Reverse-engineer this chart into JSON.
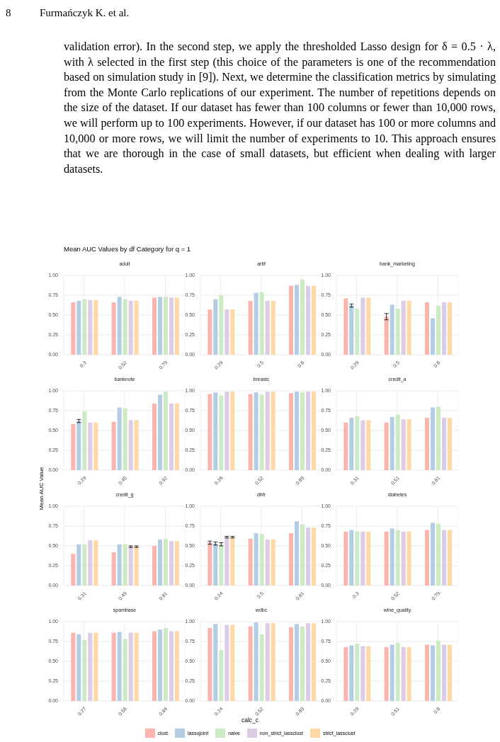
{
  "chart_data": [
    {
      "type": "other",
      "annotations": [
        "8",
        "Furmańczyk K. et al.",
        "validation error). In the second step, we apply the thresholded Lasso design for δ = 0.5 · λ, with λ selected in the first step (this choice of the parameters is one of the recommendation based on simulation study in [9]). Next, we determine the classification metrics by simulating from the Monte Carlo replications of our experiment. The number of repetitions depends on the size of the dataset. If our dataset has fewer than 100 columns or fewer than 10,000 rows, we will perform up to 100 experiments. However, if our dataset has 100 or more columns and 10,000 or more rows, we will limit the number of experiments to 10. This approach ensures that we are thorough in the case of small datasets, but efficient when dealing with larger datasets."
      ]
    },
    {
      "type": "bar",
      "title": "Mean AUC Values by df Category for q = 1",
      "subtitle": "adult",
      "categories": [
        "0.3",
        "0.52",
        "0.79"
      ],
      "ylim": [
        0,
        1
      ],
      "yticks": [
        {
          "value": 0,
          "label": "0.00"
        },
        {
          "value": 0.25,
          "label": "0.25"
        },
        {
          "value": 0.5,
          "label": "0.50"
        },
        {
          "value": 0.75,
          "label": "0.75"
        },
        {
          "value": 1,
          "label": "1.00"
        }
      ],
      "grid": true,
      "series": [
        {
          "color": "#fbb4ae",
          "values": [
            0.66,
            0.66,
            0.72
          ]
        },
        {
          "color": "#b3cde3",
          "values": [
            0.68,
            0.73,
            0.73
          ]
        },
        {
          "color": "#ccebc5",
          "values": [
            0.7,
            0.7,
            0.73
          ]
        },
        {
          "color": "#decbe4",
          "values": [
            0.69,
            0.68,
            0.72
          ]
        },
        {
          "color": "#fed9a6",
          "values": [
            0.69,
            0.68,
            0.72
          ]
        }
      ]
    },
    {
      "type": "bar",
      "subtitle": "artif",
      "categories": [
        "0.29",
        "0.5",
        "0.8"
      ],
      "ylim": [
        0,
        1
      ],
      "yticks": [
        {
          "value": 0,
          "label": "0.00"
        },
        {
          "value": 0.25,
          "label": "0.25"
        },
        {
          "value": 0.5,
          "label": "0.50"
        },
        {
          "value": 0.75,
          "label": "0.75"
        },
        {
          "value": 1,
          "label": "1.00"
        }
      ],
      "grid": true,
      "series": [
        {
          "color": "#fbb4ae",
          "values": [
            0.57,
            0.68,
            0.87
          ]
        },
        {
          "color": "#b3cde3",
          "values": [
            0.7,
            0.78,
            0.88
          ]
        },
        {
          "color": "#ccebc5",
          "values": [
            0.75,
            0.79,
            0.95
          ]
        },
        {
          "color": "#decbe4",
          "values": [
            0.57,
            0.68,
            0.87
          ]
        },
        {
          "color": "#fed9a6",
          "values": [
            0.57,
            0.68,
            0.87
          ]
        }
      ]
    },
    {
      "type": "bar",
      "subtitle": "bank_marketing",
      "categories": [
        "0.29",
        "0.5",
        "0.8"
      ],
      "ylim": [
        0,
        1
      ],
      "yticks": [
        {
          "value": 0,
          "label": "0.00"
        },
        {
          "value": 0.25,
          "label": "0.25"
        },
        {
          "value": 0.5,
          "label": "0.50"
        },
        {
          "value": 0.75,
          "label": "0.75"
        },
        {
          "value": 1,
          "label": "1.00"
        }
      ],
      "grid": true,
      "series": [
        {
          "color": "#fbb4ae",
          "values": [
            0.71,
            0.48,
            0.66
          ],
          "errors": [
            null,
            0.04,
            null
          ]
        },
        {
          "color": "#b3cde3",
          "values": [
            0.62,
            0.63,
            0.46
          ],
          "errors": [
            0.02,
            null,
            null
          ]
        },
        {
          "color": "#ccebc5",
          "values": [
            0.58,
            0.58,
            0.62
          ]
        },
        {
          "color": "#decbe4",
          "values": [
            0.72,
            0.68,
            0.66
          ]
        },
        {
          "color": "#fed9a6",
          "values": [
            0.72,
            0.68,
            0.66
          ]
        }
      ]
    },
    {
      "type": "bar",
      "subtitle": "banknote",
      "categories": [
        "0.29",
        "0.45",
        "0.92"
      ],
      "ylim": [
        0,
        1
      ],
      "yticks": [
        {
          "value": 0,
          "label": "0.00"
        },
        {
          "value": 0.25,
          "label": "0.25"
        },
        {
          "value": 0.5,
          "label": "0.50"
        },
        {
          "value": 0.75,
          "label": "0.75"
        },
        {
          "value": 1,
          "label": "1.00"
        }
      ],
      "grid": true,
      "series": [
        {
          "color": "#fbb4ae",
          "values": [
            0.58,
            0.61,
            0.84
          ]
        },
        {
          "color": "#b3cde3",
          "values": [
            0.62,
            0.79,
            0.95
          ],
          "errors": [
            0.02,
            null,
            null
          ]
        },
        {
          "color": "#ccebc5",
          "values": [
            0.74,
            0.78,
            0.99
          ]
        },
        {
          "color": "#decbe4",
          "values": [
            0.6,
            0.63,
            0.84
          ]
        },
        {
          "color": "#fed9a6",
          "values": [
            0.6,
            0.63,
            0.84
          ]
        }
      ]
    },
    {
      "type": "bar",
      "subtitle": "breastc",
      "categories": [
        "0.26",
        "0.52",
        "0.89"
      ],
      "ylim": [
        0,
        1
      ],
      "yticks": [
        {
          "value": 0,
          "label": "0.00"
        },
        {
          "value": 0.25,
          "label": "0.25"
        },
        {
          "value": 0.5,
          "label": "0.50"
        },
        {
          "value": 0.75,
          "label": "0.75"
        },
        {
          "value": 1,
          "label": "1.00"
        }
      ],
      "grid": true,
      "series": [
        {
          "color": "#fbb4ae",
          "values": [
            0.96,
            0.96,
            0.97
          ]
        },
        {
          "color": "#b3cde3",
          "values": [
            0.98,
            0.98,
            0.99
          ]
        },
        {
          "color": "#ccebc5",
          "values": [
            0.94,
            0.95,
            0.98
          ]
        },
        {
          "color": "#decbe4",
          "values": [
            0.99,
            0.99,
            0.99
          ]
        },
        {
          "color": "#fed9a6",
          "values": [
            0.99,
            0.99,
            0.99
          ]
        }
      ]
    },
    {
      "type": "bar",
      "subtitle": "credit_a",
      "categories": [
        "0.31",
        "0.51",
        "0.81"
      ],
      "ylim": [
        0,
        1
      ],
      "yticks": [
        {
          "value": 0,
          "label": "0.00"
        },
        {
          "value": 0.25,
          "label": "0.25"
        },
        {
          "value": 0.5,
          "label": "0.50"
        },
        {
          "value": 0.75,
          "label": "0.75"
        },
        {
          "value": 1,
          "label": "1.00"
        }
      ],
      "grid": true,
      "series": [
        {
          "color": "#fbb4ae",
          "values": [
            0.6,
            0.6,
            0.66
          ]
        },
        {
          "color": "#b3cde3",
          "values": [
            0.66,
            0.67,
            0.79
          ]
        },
        {
          "color": "#ccebc5",
          "values": [
            0.68,
            0.7,
            0.8
          ]
        },
        {
          "color": "#decbe4",
          "values": [
            0.63,
            0.64,
            0.66
          ]
        },
        {
          "color": "#fed9a6",
          "values": [
            0.63,
            0.64,
            0.66
          ]
        }
      ]
    },
    {
      "type": "bar",
      "subtitle": "credit_g",
      "ylabel": "Mean AUC Value",
      "categories": [
        "0.31",
        "0.49",
        "0.81"
      ],
      "ylim": [
        0,
        1
      ],
      "yticks": [
        {
          "value": 0,
          "label": "0.00"
        },
        {
          "value": 0.25,
          "label": "0.25"
        },
        {
          "value": 0.5,
          "label": "0.50"
        },
        {
          "value": 0.75,
          "label": "0.75"
        },
        {
          "value": 1,
          "label": "1.00"
        }
      ],
      "grid": true,
      "series": [
        {
          "color": "#fbb4ae",
          "values": [
            0.4,
            0.42,
            0.5
          ]
        },
        {
          "color": "#b3cde3",
          "values": [
            0.52,
            0.52,
            0.58
          ]
        },
        {
          "color": "#ccebc5",
          "values": [
            0.52,
            0.52,
            0.59
          ]
        },
        {
          "color": "#decbe4",
          "values": [
            0.57,
            0.49,
            0.56
          ],
          "errors": [
            null,
            0.01,
            null
          ]
        },
        {
          "color": "#fed9a6",
          "values": [
            0.57,
            0.49,
            0.56
          ],
          "errors": [
            null,
            0.01,
            null
          ]
        }
      ]
    },
    {
      "type": "bar",
      "subtitle": "dhfr",
      "categories": [
        "0.24",
        "0.5",
        "0.81"
      ],
      "ylim": [
        0,
        1
      ],
      "yticks": [
        {
          "value": 0,
          "label": "0.00"
        },
        {
          "value": 0.25,
          "label": "0.25"
        },
        {
          "value": 0.5,
          "label": "0.50"
        },
        {
          "value": 0.75,
          "label": "0.75"
        },
        {
          "value": 1,
          "label": "1.00"
        }
      ],
      "grid": true,
      "series": [
        {
          "color": "#fbb4ae",
          "values": [
            0.54,
            0.59,
            0.66
          ],
          "errors": [
            0.02,
            null,
            null
          ]
        },
        {
          "color": "#b3cde3",
          "values": [
            0.53,
            0.66,
            0.81
          ],
          "errors": [
            0.02,
            null,
            null
          ]
        },
        {
          "color": "#ccebc5",
          "values": [
            0.52,
            0.65,
            0.77
          ],
          "errors": [
            0.02,
            null,
            null
          ]
        },
        {
          "color": "#decbe4",
          "values": [
            0.61,
            0.58,
            0.73
          ],
          "errors": [
            0.01,
            null,
            null
          ]
        },
        {
          "color": "#fed9a6",
          "values": [
            0.61,
            0.58,
            0.73
          ],
          "errors": [
            0.01,
            null,
            null
          ]
        }
      ]
    },
    {
      "type": "bar",
      "subtitle": "diabetes",
      "categories": [
        "0.3",
        "0.52",
        "0.79"
      ],
      "ylim": [
        0,
        1
      ],
      "yticks": [
        {
          "value": 0,
          "label": "0.00"
        },
        {
          "value": 0.25,
          "label": "0.25"
        },
        {
          "value": 0.5,
          "label": "0.50"
        },
        {
          "value": 0.75,
          "label": "0.75"
        },
        {
          "value": 1,
          "label": "1.00"
        }
      ],
      "grid": true,
      "series": [
        {
          "color": "#fbb4ae",
          "values": [
            0.68,
            0.68,
            0.7
          ]
        },
        {
          "color": "#b3cde3",
          "values": [
            0.7,
            0.72,
            0.79
          ]
        },
        {
          "color": "#ccebc5",
          "values": [
            0.68,
            0.7,
            0.78
          ]
        },
        {
          "color": "#decbe4",
          "values": [
            0.68,
            0.68,
            0.7
          ]
        },
        {
          "color": "#fed9a6",
          "values": [
            0.68,
            0.68,
            0.7
          ]
        }
      ]
    },
    {
      "type": "bar",
      "subtitle": "spambase",
      "categories": [
        "0.27",
        "0.56",
        "0.84"
      ],
      "ylim": [
        0,
        1
      ],
      "yticks": [
        {
          "value": 0,
          "label": "0.00"
        },
        {
          "value": 0.25,
          "label": "0.25"
        },
        {
          "value": 0.5,
          "label": "0.50"
        },
        {
          "value": 0.75,
          "label": "0.75"
        },
        {
          "value": 1,
          "label": "1.00"
        }
      ],
      "grid": true,
      "series": [
        {
          "color": "#fbb4ae",
          "values": [
            0.86,
            0.86,
            0.88
          ]
        },
        {
          "color": "#b3cde3",
          "values": [
            0.84,
            0.87,
            0.9
          ]
        },
        {
          "color": "#ccebc5",
          "values": [
            0.77,
            0.78,
            0.92
          ]
        },
        {
          "color": "#decbe4",
          "values": [
            0.86,
            0.86,
            0.88
          ]
        },
        {
          "color": "#fed9a6",
          "values": [
            0.86,
            0.86,
            0.88
          ]
        }
      ]
    },
    {
      "type": "bar",
      "subtitle": "wdbc",
      "xlabel": "calc_c",
      "categories": [
        "0.24",
        "0.52",
        "0.89"
      ],
      "ylim": [
        0,
        1
      ],
      "yticks": [
        {
          "value": 0,
          "label": "0.00"
        },
        {
          "value": 0.25,
          "label": "0.25"
        },
        {
          "value": 0.5,
          "label": "0.50"
        },
        {
          "value": 0.75,
          "label": "0.75"
        },
        {
          "value": 1,
          "label": "1.00"
        }
      ],
      "grid": true,
      "series": [
        {
          "color": "#fbb4ae",
          "values": [
            0.92,
            0.94,
            0.93
          ]
        },
        {
          "color": "#b3cde3",
          "values": [
            0.97,
            0.99,
            0.97
          ]
        },
        {
          "color": "#ccebc5",
          "values": [
            0.64,
            0.84,
            0.94
          ]
        },
        {
          "color": "#decbe4",
          "values": [
            0.96,
            0.98,
            0.98
          ]
        },
        {
          "color": "#fed9a6",
          "values": [
            0.96,
            0.98,
            0.98
          ]
        }
      ]
    },
    {
      "type": "bar",
      "subtitle": "wine_quality",
      "legend": "bottom",
      "categories": [
        "0.29",
        "0.51",
        "0.8"
      ],
      "ylim": [
        0,
        1
      ],
      "yticks": [
        {
          "value": 0,
          "label": "0.00"
        },
        {
          "value": 0.25,
          "label": "0.25"
        },
        {
          "value": 0.5,
          "label": "0.50"
        },
        {
          "value": 0.75,
          "label": "0.75"
        },
        {
          "value": 1,
          "label": "1.00"
        }
      ],
      "grid": true,
      "series": [
        {
          "name": "clust",
          "color": "#fbb4ae",
          "values": [
            0.68,
            0.68,
            0.71
          ]
        },
        {
          "name": "lassojoint",
          "color": "#b3cde3",
          "values": [
            0.7,
            0.71,
            0.7
          ]
        },
        {
          "name": "naive",
          "color": "#ccebc5",
          "values": [
            0.72,
            0.73,
            0.76
          ]
        },
        {
          "name": "non_strict_lassclust",
          "color": "#decbe4",
          "values": [
            0.69,
            0.68,
            0.71
          ]
        },
        {
          "name": "strict_lassclust",
          "color": "#fed9a6",
          "values": [
            0.69,
            0.68,
            0.71
          ]
        }
      ]
    }
  ]
}
